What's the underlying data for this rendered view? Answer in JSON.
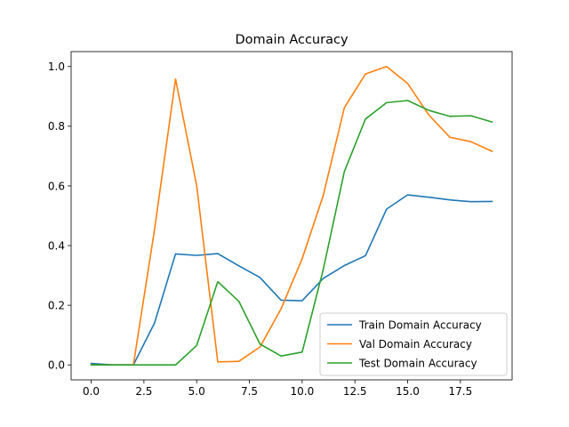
{
  "chart_data": {
    "type": "line",
    "title": "Domain Accuracy",
    "xlabel": "",
    "ylabel": "",
    "xlim": [
      -0.95,
      19.95
    ],
    "ylim": [
      -0.05,
      1.05
    ],
    "xticks": [
      0.0,
      2.5,
      5.0,
      7.5,
      10.0,
      12.5,
      15.0,
      17.5
    ],
    "xtick_labels": [
      "0.0",
      "2.5",
      "5.0",
      "7.5",
      "10.0",
      "12.5",
      "15.0",
      "17.5"
    ],
    "yticks": [
      0.0,
      0.2,
      0.4,
      0.6,
      0.8,
      1.0
    ],
    "ytick_labels": [
      "0.0",
      "0.2",
      "0.4",
      "0.6",
      "0.8",
      "1.0"
    ],
    "grid": false,
    "legend_position": "lower-right",
    "x": [
      0,
      1,
      2,
      3,
      4,
      5,
      6,
      7,
      8,
      9,
      10,
      11,
      12,
      13,
      14,
      15,
      16,
      17,
      18,
      19
    ],
    "series": [
      {
        "name": "Train Domain Accuracy",
        "color": "#1f77b4",
        "values": [
          0.005,
          0.0,
          0.0,
          0.14,
          0.372,
          0.367,
          0.373,
          0.332,
          0.293,
          0.217,
          0.215,
          0.29,
          0.333,
          0.366,
          0.522,
          0.57,
          0.562,
          0.553,
          0.547,
          0.548
        ]
      },
      {
        "name": "Val Domain Accuracy",
        "color": "#ff7f0e",
        "values": [
          0.0,
          0.0,
          0.0,
          0.452,
          0.958,
          0.601,
          0.01,
          0.012,
          0.06,
          0.188,
          0.356,
          0.568,
          0.862,
          0.975,
          1.0,
          0.943,
          0.838,
          0.763,
          0.748,
          0.716
        ]
      },
      {
        "name": "Test Domain Accuracy",
        "color": "#2ca02c",
        "values": [
          0.0,
          0.0,
          0.0,
          0.0,
          0.0,
          0.065,
          0.279,
          0.213,
          0.07,
          0.03,
          0.043,
          0.32,
          0.648,
          0.824,
          0.879,
          0.886,
          0.853,
          0.833,
          0.835,
          0.814
        ]
      }
    ]
  }
}
